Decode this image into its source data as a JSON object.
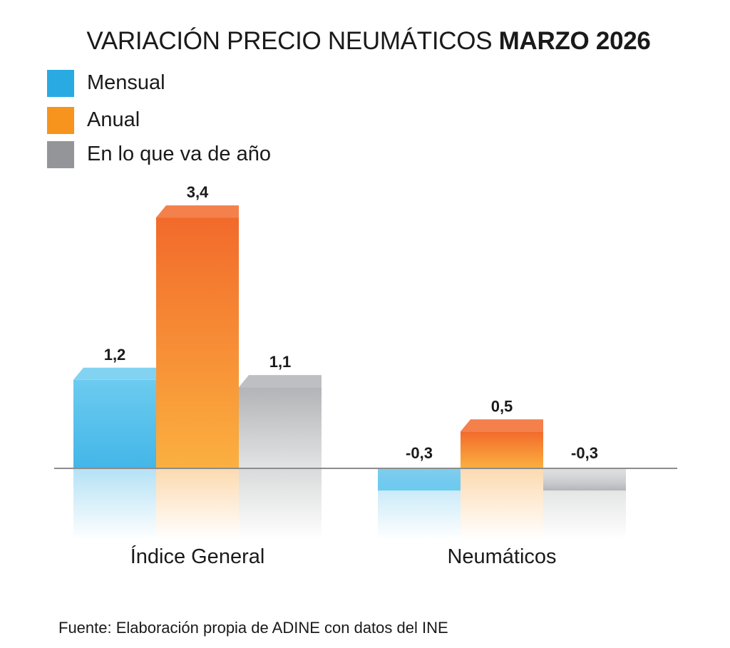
{
  "chart_data": {
    "type": "bar",
    "title": {
      "regular": "VARIACIÓN PRECIO NEUMÁTICOS ",
      "bold": "MARZO 2026"
    },
    "categories": [
      "Índice General",
      "Neumáticos"
    ],
    "series": [
      {
        "name": "Mensual",
        "values": [
          1.2,
          -0.3
        ],
        "labels": [
          "1,2",
          "-0,3"
        ],
        "color": "#29aae2"
      },
      {
        "name": "Anual",
        "values": [
          3.4,
          0.5
        ],
        "labels": [
          "3,4",
          "0,5"
        ],
        "color": "#f7941d"
      },
      {
        "name": "En lo que va de año",
        "values": [
          1.1,
          -0.3
        ],
        "labels": [
          "1,1",
          "-0,3"
        ],
        "color": "#939598"
      }
    ],
    "ylim": [
      -0.6,
      3.6
    ],
    "legend": "top-left",
    "grid": false
  },
  "source": "Fuente: Elaboración propia de ADINE con datos del INE"
}
